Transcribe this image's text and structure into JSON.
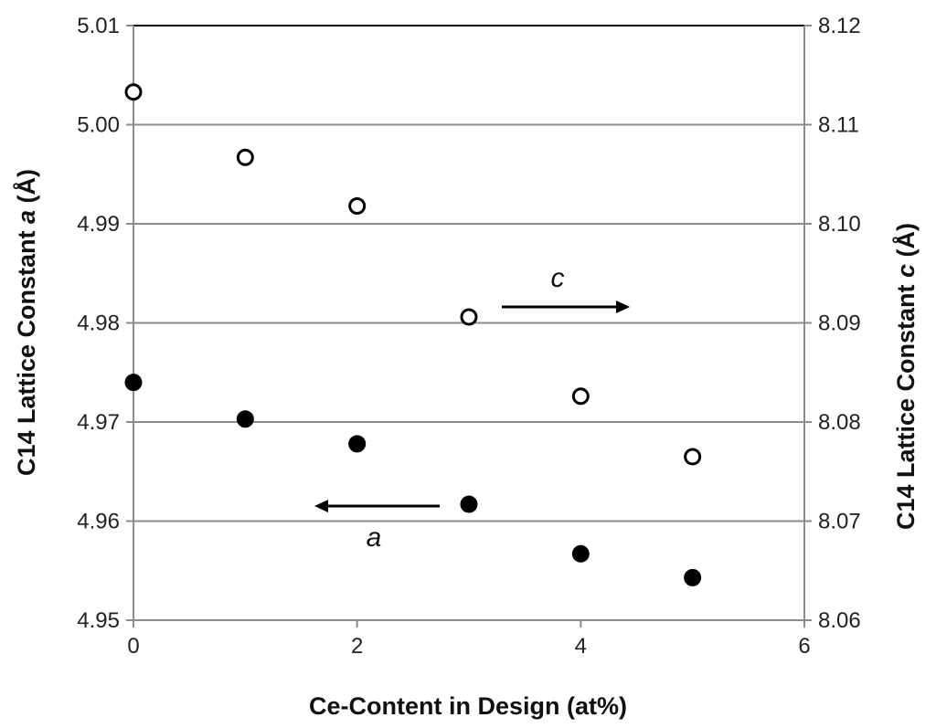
{
  "chart_data": {
    "type": "scatter",
    "xlabel": "Ce-Content in Design (at%)",
    "ylabel_left_prefix": "C14 Lattice Constant ",
    "ylabel_left_var": "a",
    "ylabel_left_unit": " (Å)",
    "ylabel_right_prefix": "C14 Lattice Constant ",
    "ylabel_right_var": "c",
    "ylabel_right_unit": " (Å)",
    "xlim": [
      0,
      6
    ],
    "ylim_left": [
      4.95,
      5.01
    ],
    "ylim_right": [
      8.06,
      8.12
    ],
    "x_ticks": [
      "0",
      "2",
      "4",
      "6"
    ],
    "y_left_ticks": [
      "4.95",
      "4.96",
      "4.97",
      "4.98",
      "4.99",
      "5.00",
      "5.01"
    ],
    "y_right_ticks": [
      "8.06",
      "8.07",
      "8.08",
      "8.09",
      "8.10",
      "8.11",
      "8.12"
    ],
    "grid": "horizontal",
    "series": [
      {
        "axis": "left",
        "marker": "filled-circle",
        "x": [
          0,
          1,
          2,
          3,
          4,
          5
        ],
        "y": [
          4.974,
          4.9703,
          4.9678,
          4.9617,
          4.9567,
          4.9543
        ]
      },
      {
        "axis": "right",
        "marker": "open-circle",
        "x": [
          0,
          1,
          2,
          3,
          4,
          5
        ],
        "y": [
          8.1133,
          8.1067,
          8.1018,
          8.0906,
          8.0826,
          8.0765
        ]
      }
    ],
    "annotations": [
      {
        "text": "c",
        "arrow": "right"
      },
      {
        "text": "a",
        "arrow": "left"
      }
    ]
  }
}
